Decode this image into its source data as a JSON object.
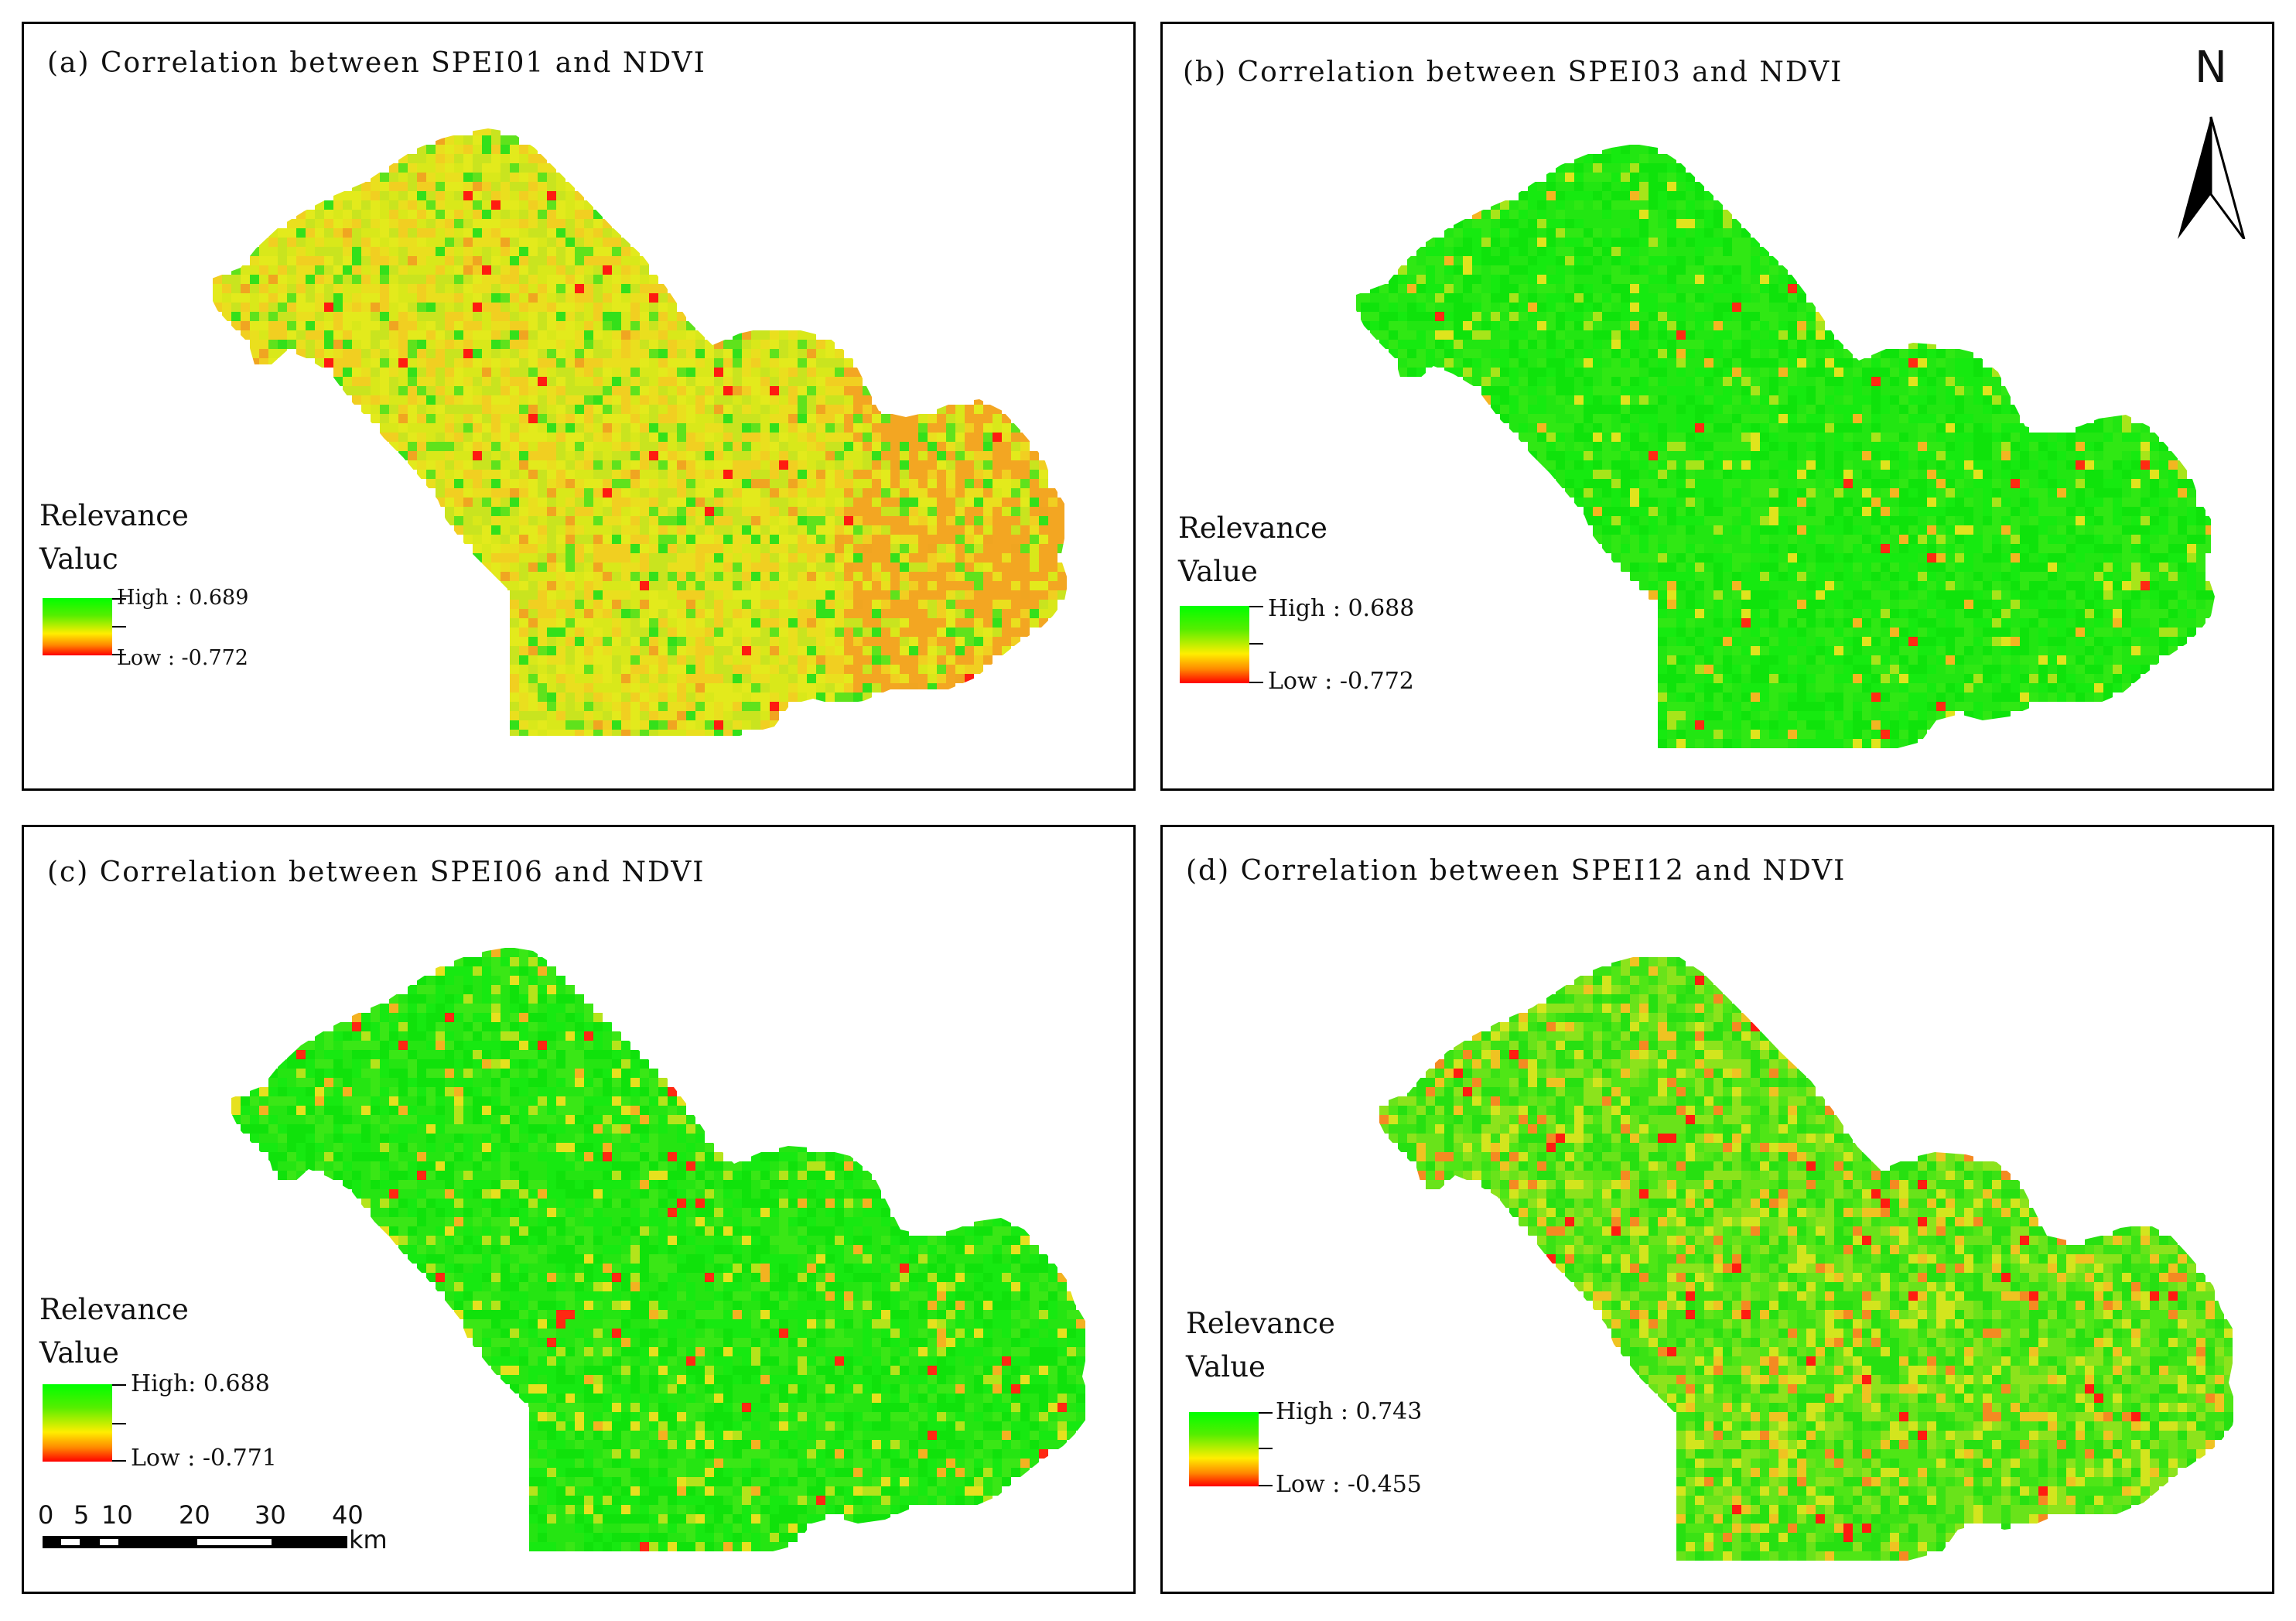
{
  "panels": [
    {
      "id": "a",
      "title": "(a) Correlation between SPEI01 and NDVI",
      "legend": {
        "title_line1": "Relevance",
        "title_line2": "Valuc",
        "high": "High : 0.689",
        "low": "Low : -0.772"
      },
      "palette": {
        "base": [
          "#e3ea1c",
          "#eadf1e",
          "#d9e81a",
          "#f1cf21",
          "#c9e41f"
        ],
        "accent": [
          "#5fe21c",
          "#33e01a",
          "#f0a521",
          "#ff1b10"
        ],
        "accent_rate": 0.14,
        "hot_side": "#f3a622"
      }
    },
    {
      "id": "b",
      "title": "(b) Correlation between SPEI03 and NDVI",
      "legend": {
        "title_line1": "Relevance",
        "title_line2": "Value",
        "high": "High : 0.688",
        "low": "Low : -0.772"
      },
      "palette": {
        "base": [
          "#16ea10",
          "#22e612",
          "#0fe30b",
          "#30e814"
        ],
        "accent": [
          "#a7e51a",
          "#e0e41d",
          "#f3b621",
          "#ff2a12"
        ],
        "accent_rate": 0.09,
        "hot_side": ""
      }
    },
    {
      "id": "c",
      "title": "(c) Correlation between SPEI06 and NDVI",
      "legend": {
        "title_line1": "Relevance",
        "title_line2": "Value",
        "high": "High: 0.688",
        "low": "Low : -0.771"
      },
      "palette": {
        "base": [
          "#17e911",
          "#25e512",
          "#10e20b",
          "#3ae716"
        ],
        "accent": [
          "#b4e41b",
          "#e6e11e",
          "#f3b221",
          "#ff2812"
        ],
        "accent_rate": 0.12,
        "hot_side": ""
      }
    },
    {
      "id": "d",
      "title": "(d) Correlation between SPEI12 and NDVI",
      "legend": {
        "title_line1": "Relevance",
        "title_line2": "Value",
        "high": "High : 0.743",
        "low": "Low : -0.455"
      },
      "palette": {
        "base": [
          "#4fe616",
          "#69e31a",
          "#3ae214",
          "#8ce31c",
          "#27e011"
        ],
        "accent": [
          "#d3e51e",
          "#efc322",
          "#f48a22",
          "#ff1c10"
        ],
        "accent_rate": 0.2,
        "hot_side": ""
      }
    }
  ],
  "north_arrow": {
    "letter": "N"
  },
  "scale_bar": {
    "ticks": [
      "0",
      "5",
      "10",
      "20",
      "30",
      "40"
    ],
    "unit": "km"
  }
}
